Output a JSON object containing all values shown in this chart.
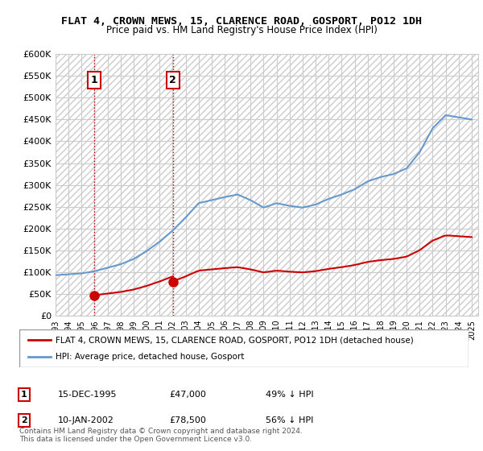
{
  "title": "FLAT 4, CROWN MEWS, 15, CLARENCE ROAD, GOSPORT, PO12 1DH",
  "subtitle": "Price paid vs. HM Land Registry's House Price Index (HPI)",
  "ylabel_ticks": [
    "£0",
    "£50K",
    "£100K",
    "£150K",
    "£200K",
    "£250K",
    "£300K",
    "£350K",
    "£400K",
    "£450K",
    "£500K",
    "£550K",
    "£600K"
  ],
  "ytick_values": [
    0,
    50000,
    100000,
    150000,
    200000,
    250000,
    300000,
    350000,
    400000,
    450000,
    500000,
    550000,
    600000
  ],
  "hpi_color": "#6699cc",
  "price_color": "#cc0000",
  "purchase_color": "#cc0000",
  "annotation_box_color": "#cc0000",
  "hatch_color": "#cccccc",
  "grid_color": "#cccccc",
  "legend_box_color": "#000000",
  "purchase1": {
    "date_num": 1995.96,
    "price": 47000,
    "label": "1"
  },
  "purchase2": {
    "date_num": 2002.03,
    "price": 78500,
    "label": "2"
  },
  "legend_entries": [
    "FLAT 4, CROWN MEWS, 15, CLARENCE ROAD, GOSPORT, PO12 1DH (detached house)",
    "HPI: Average price, detached house, Gosport"
  ],
  "table_rows": [
    [
      "1",
      "15-DEC-1995",
      "£47,000",
      "49% ↓ HPI"
    ],
    [
      "2",
      "10-JAN-2002",
      "£78,500",
      "56% ↓ HPI"
    ]
  ],
  "footnote": "Contains HM Land Registry data © Crown copyright and database right 2024.\nThis data is licensed under the Open Government Licence v3.0.",
  "xmin": 1993,
  "xmax": 2025.5,
  "ymin": 0,
  "ymax": 600000
}
